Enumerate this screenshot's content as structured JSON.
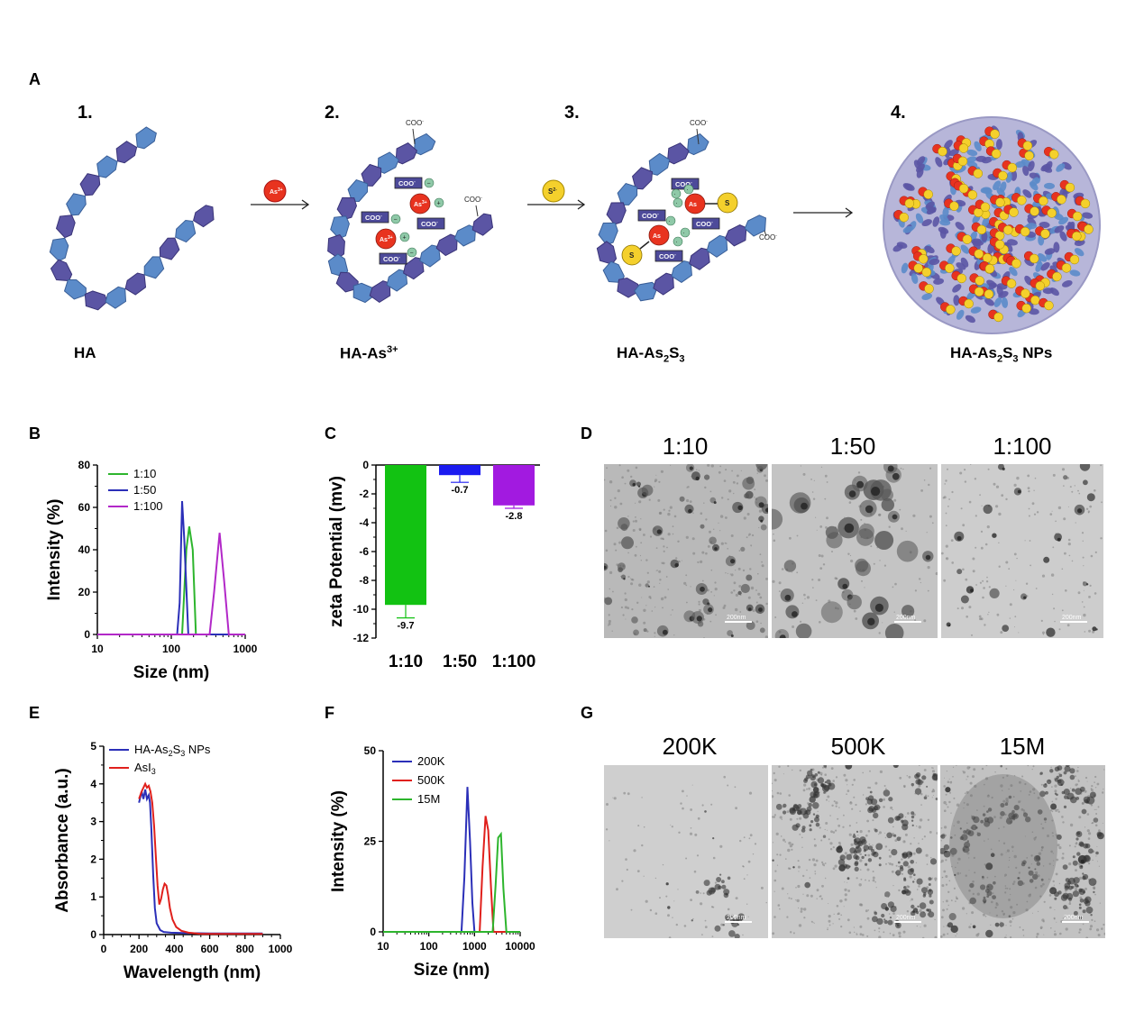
{
  "panels": {
    "A": "A",
    "B": "B",
    "C": "C",
    "D": "D",
    "E": "E",
    "F": "F",
    "G": "G"
  },
  "schematic": {
    "steps": [
      "1.",
      "2.",
      "3.",
      "4."
    ],
    "captions": [
      "HA",
      "HA-As",
      "HA-As",
      "HA-As"
    ],
    "caption_sup": "3+",
    "caption_sub2": "2",
    "caption_s": "S",
    "caption_sub3": "3",
    "caption_nps": " NPs",
    "reagents": [
      "As",
      "S"
    ],
    "reagent_sup": [
      "3+",
      "2-"
    ],
    "coo_label": "COO",
    "coo_sup": "-",
    "as_label": "As",
    "as_sup": "3+",
    "s_label": "S",
    "colors": {
      "chain_dark": "#5b55a4",
      "chain_light": "#5b8bc9",
      "arsenic": "#e8331f",
      "sulfur": "#f4d02c",
      "nps_bg": "#b7b6d9"
    }
  },
  "charts": {
    "B": {
      "chart_data": {
        "type": "line",
        "xscale": "log",
        "xlim": [
          10,
          1000
        ],
        "ylim": [
          0,
          80
        ],
        "xlabel": "Size (nm)",
        "ylabel": "Intensity (%)",
        "xticks": [
          "10",
          "100",
          "1000"
        ],
        "yticks": [
          "0",
          "20",
          "40",
          "60",
          "80"
        ],
        "series": [
          {
            "name": "1:10",
            "color": "#2db52d",
            "x": [
              10,
              140,
              160,
              175,
              195,
              215,
              1000
            ],
            "y": [
              0,
              0,
              40,
              51,
              40,
              0,
              0
            ]
          },
          {
            "name": "1:50",
            "color": "#2b2fb8",
            "x": [
              10,
              120,
              130,
              140,
              150,
              170,
              1000
            ],
            "y": [
              0,
              0,
              15,
              63,
              45,
              0,
              0
            ]
          },
          {
            "name": "1:100",
            "color": "#b228c8",
            "x": [
              10,
              330,
              380,
              450,
              520,
              600,
              1000
            ],
            "y": [
              0,
              0,
              20,
              48,
              25,
              0,
              0
            ]
          }
        ]
      }
    },
    "C": {
      "chart_data": {
        "type": "bar",
        "categories": [
          "1:10",
          "1:50",
          "1:100"
        ],
        "values": [
          -9.7,
          -0.7,
          -2.8
        ],
        "errors": [
          0.9,
          0.5,
          0.2
        ],
        "colors": [
          "#12c212",
          "#1b1bf0",
          "#a21ae0"
        ],
        "value_labels": [
          "-9.7",
          "-0.7",
          "-2.8"
        ],
        "ylabel": "zeta Potential (mv)",
        "ylim": [
          -12,
          0
        ],
        "yticks": [
          "0",
          "-2",
          "-4",
          "-6",
          "-8",
          "-10",
          "-12"
        ]
      }
    },
    "E": {
      "chart_data": {
        "type": "line",
        "xlim": [
          0,
          1000
        ],
        "ylim": [
          0,
          5
        ],
        "xlabel": "Wavelength (nm)",
        "ylabel": "Absorbance (a.u.)",
        "xticks": [
          "0",
          "200",
          "400",
          "600",
          "800",
          "1000"
        ],
        "yticks": [
          "0",
          "1",
          "2",
          "3",
          "4",
          "5"
        ],
        "legend_sub": [
          "2",
          "3"
        ],
        "series": [
          {
            "name": "HA-As",
            "name_s": "S",
            "name_tail": " NPs",
            "color": "#2b2fb8",
            "x": [
              200,
              215,
              225,
              235,
              245,
              255,
              262,
              270,
              280,
              290,
              300,
              320,
              340,
              380,
              450,
              600,
              900
            ],
            "y": [
              3.5,
              3.8,
              3.6,
              3.85,
              3.6,
              3.7,
              3.5,
              2.8,
              1.6,
              0.7,
              0.3,
              0.12,
              0.07,
              0.05,
              0.04,
              0.03,
              0.03
            ]
          },
          {
            "name": "AsI",
            "name_sub": "3",
            "color": "#e0201c",
            "x": [
              200,
              215,
              225,
              235,
              245,
              255,
              265,
              275,
              285,
              295,
              305,
              315,
              325,
              335,
              345,
              355,
              365,
              375,
              390,
              410,
              440,
              480,
              550,
              700,
              900
            ],
            "y": [
              3.6,
              3.8,
              3.9,
              4.0,
              3.9,
              3.95,
              3.8,
              3.5,
              2.9,
              2.1,
              1.3,
              0.8,
              0.95,
              1.2,
              1.35,
              1.3,
              1.05,
              0.7,
              0.4,
              0.2,
              0.1,
              0.05,
              0.02,
              0.02,
              0.02
            ]
          }
        ]
      }
    },
    "F": {
      "chart_data": {
        "type": "line",
        "xscale": "log",
        "xlim": [
          10,
          10000
        ],
        "ylim": [
          0,
          50
        ],
        "xlabel": "Size (nm)",
        "ylabel": "Intensity (%)",
        "xticks": [
          "10",
          "100",
          "1000",
          "10000"
        ],
        "yticks": [
          "0",
          "25",
          "50"
        ],
        "series": [
          {
            "name": "200K",
            "color": "#2b2fb8",
            "x": [
              10,
              520,
              600,
              700,
              800,
              900,
              1000,
              10000
            ],
            "y": [
              0,
              0,
              15,
              40,
              25,
              8,
              0,
              0
            ]
          },
          {
            "name": "500K",
            "color": "#e0201c",
            "x": [
              10,
              1300,
              1500,
              1750,
              2000,
              2300,
              2600,
              10000
            ],
            "y": [
              0,
              0,
              18,
              32,
              28,
              12,
              0,
              0
            ]
          },
          {
            "name": "15M",
            "color": "#2db52d",
            "x": [
              10,
              2500,
              2900,
              3300,
              3800,
              4300,
              5000,
              10000
            ],
            "y": [
              0,
              0,
              13,
              26,
              27,
              12,
              0,
              0
            ]
          }
        ]
      }
    }
  },
  "tem_D": {
    "titles": [
      "1:10",
      "1:50",
      "1:100"
    ],
    "scale_bar": "200nm"
  },
  "tem_G": {
    "titles": [
      "200K",
      "500K",
      "15M"
    ],
    "scale_bar": "200nm"
  }
}
